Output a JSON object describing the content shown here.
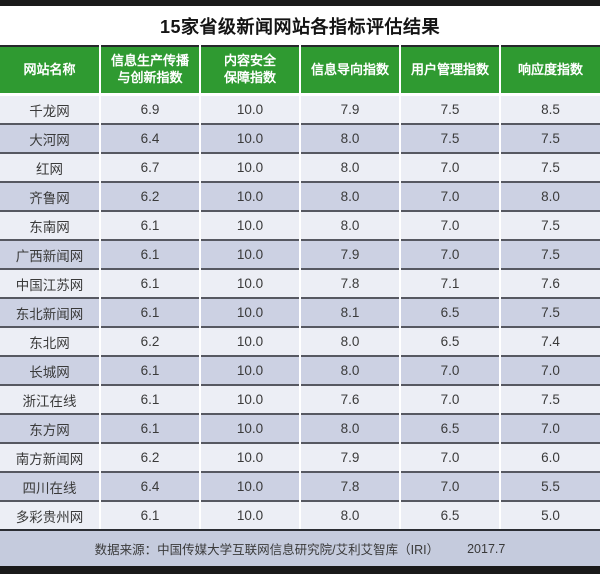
{
  "colors": {
    "header_green": "#2f9a31",
    "row_light": "#eceef5",
    "row_dark": "#ccd1e3",
    "footer_bg": "#c5cbdd",
    "black_bar": "#1a1a1a"
  },
  "chart_data": {
    "type": "table",
    "title": "15家省级新闻网站各指标评估结果",
    "columns": [
      "网站名称",
      "信息生产传播\n与创新指数",
      "内容安全\n保障指数",
      "信息导向指数",
      "用户管理指数",
      "响应度指数"
    ],
    "rows": [
      [
        "千龙网",
        "6.9",
        "10.0",
        "7.9",
        "7.5",
        "8.5"
      ],
      [
        "大河网",
        "6.4",
        "10.0",
        "8.0",
        "7.5",
        "7.5"
      ],
      [
        "红网",
        "6.7",
        "10.0",
        "8.0",
        "7.0",
        "7.5"
      ],
      [
        "齐鲁网",
        "6.2",
        "10.0",
        "8.0",
        "7.0",
        "8.0"
      ],
      [
        "东南网",
        "6.1",
        "10.0",
        "8.0",
        "7.0",
        "7.5"
      ],
      [
        "广西新闻网",
        "6.1",
        "10.0",
        "7.9",
        "7.0",
        "7.5"
      ],
      [
        "中国江苏网",
        "6.1",
        "10.0",
        "7.8",
        "7.1",
        "7.6"
      ],
      [
        "东北新闻网",
        "6.1",
        "10.0",
        "8.1",
        "6.5",
        "7.5"
      ],
      [
        "东北网",
        "6.2",
        "10.0",
        "8.0",
        "6.5",
        "7.4"
      ],
      [
        "长城网",
        "6.1",
        "10.0",
        "8.0",
        "7.0",
        "7.0"
      ],
      [
        "浙江在线",
        "6.1",
        "10.0",
        "7.6",
        "7.0",
        "7.5"
      ],
      [
        "东方网",
        "6.1",
        "10.0",
        "8.0",
        "6.5",
        "7.0"
      ],
      [
        "南方新闻网",
        "6.2",
        "10.0",
        "7.9",
        "7.0",
        "6.0"
      ],
      [
        "四川在线",
        "6.4",
        "10.0",
        "7.8",
        "7.0",
        "5.5"
      ],
      [
        "多彩贵州网",
        "6.1",
        "10.0",
        "8.0",
        "6.5",
        "5.0"
      ]
    ],
    "source": "数据来源：中国传媒大学互联网信息研究院/艾利艾智库（IRI）",
    "date": "2017.7"
  }
}
